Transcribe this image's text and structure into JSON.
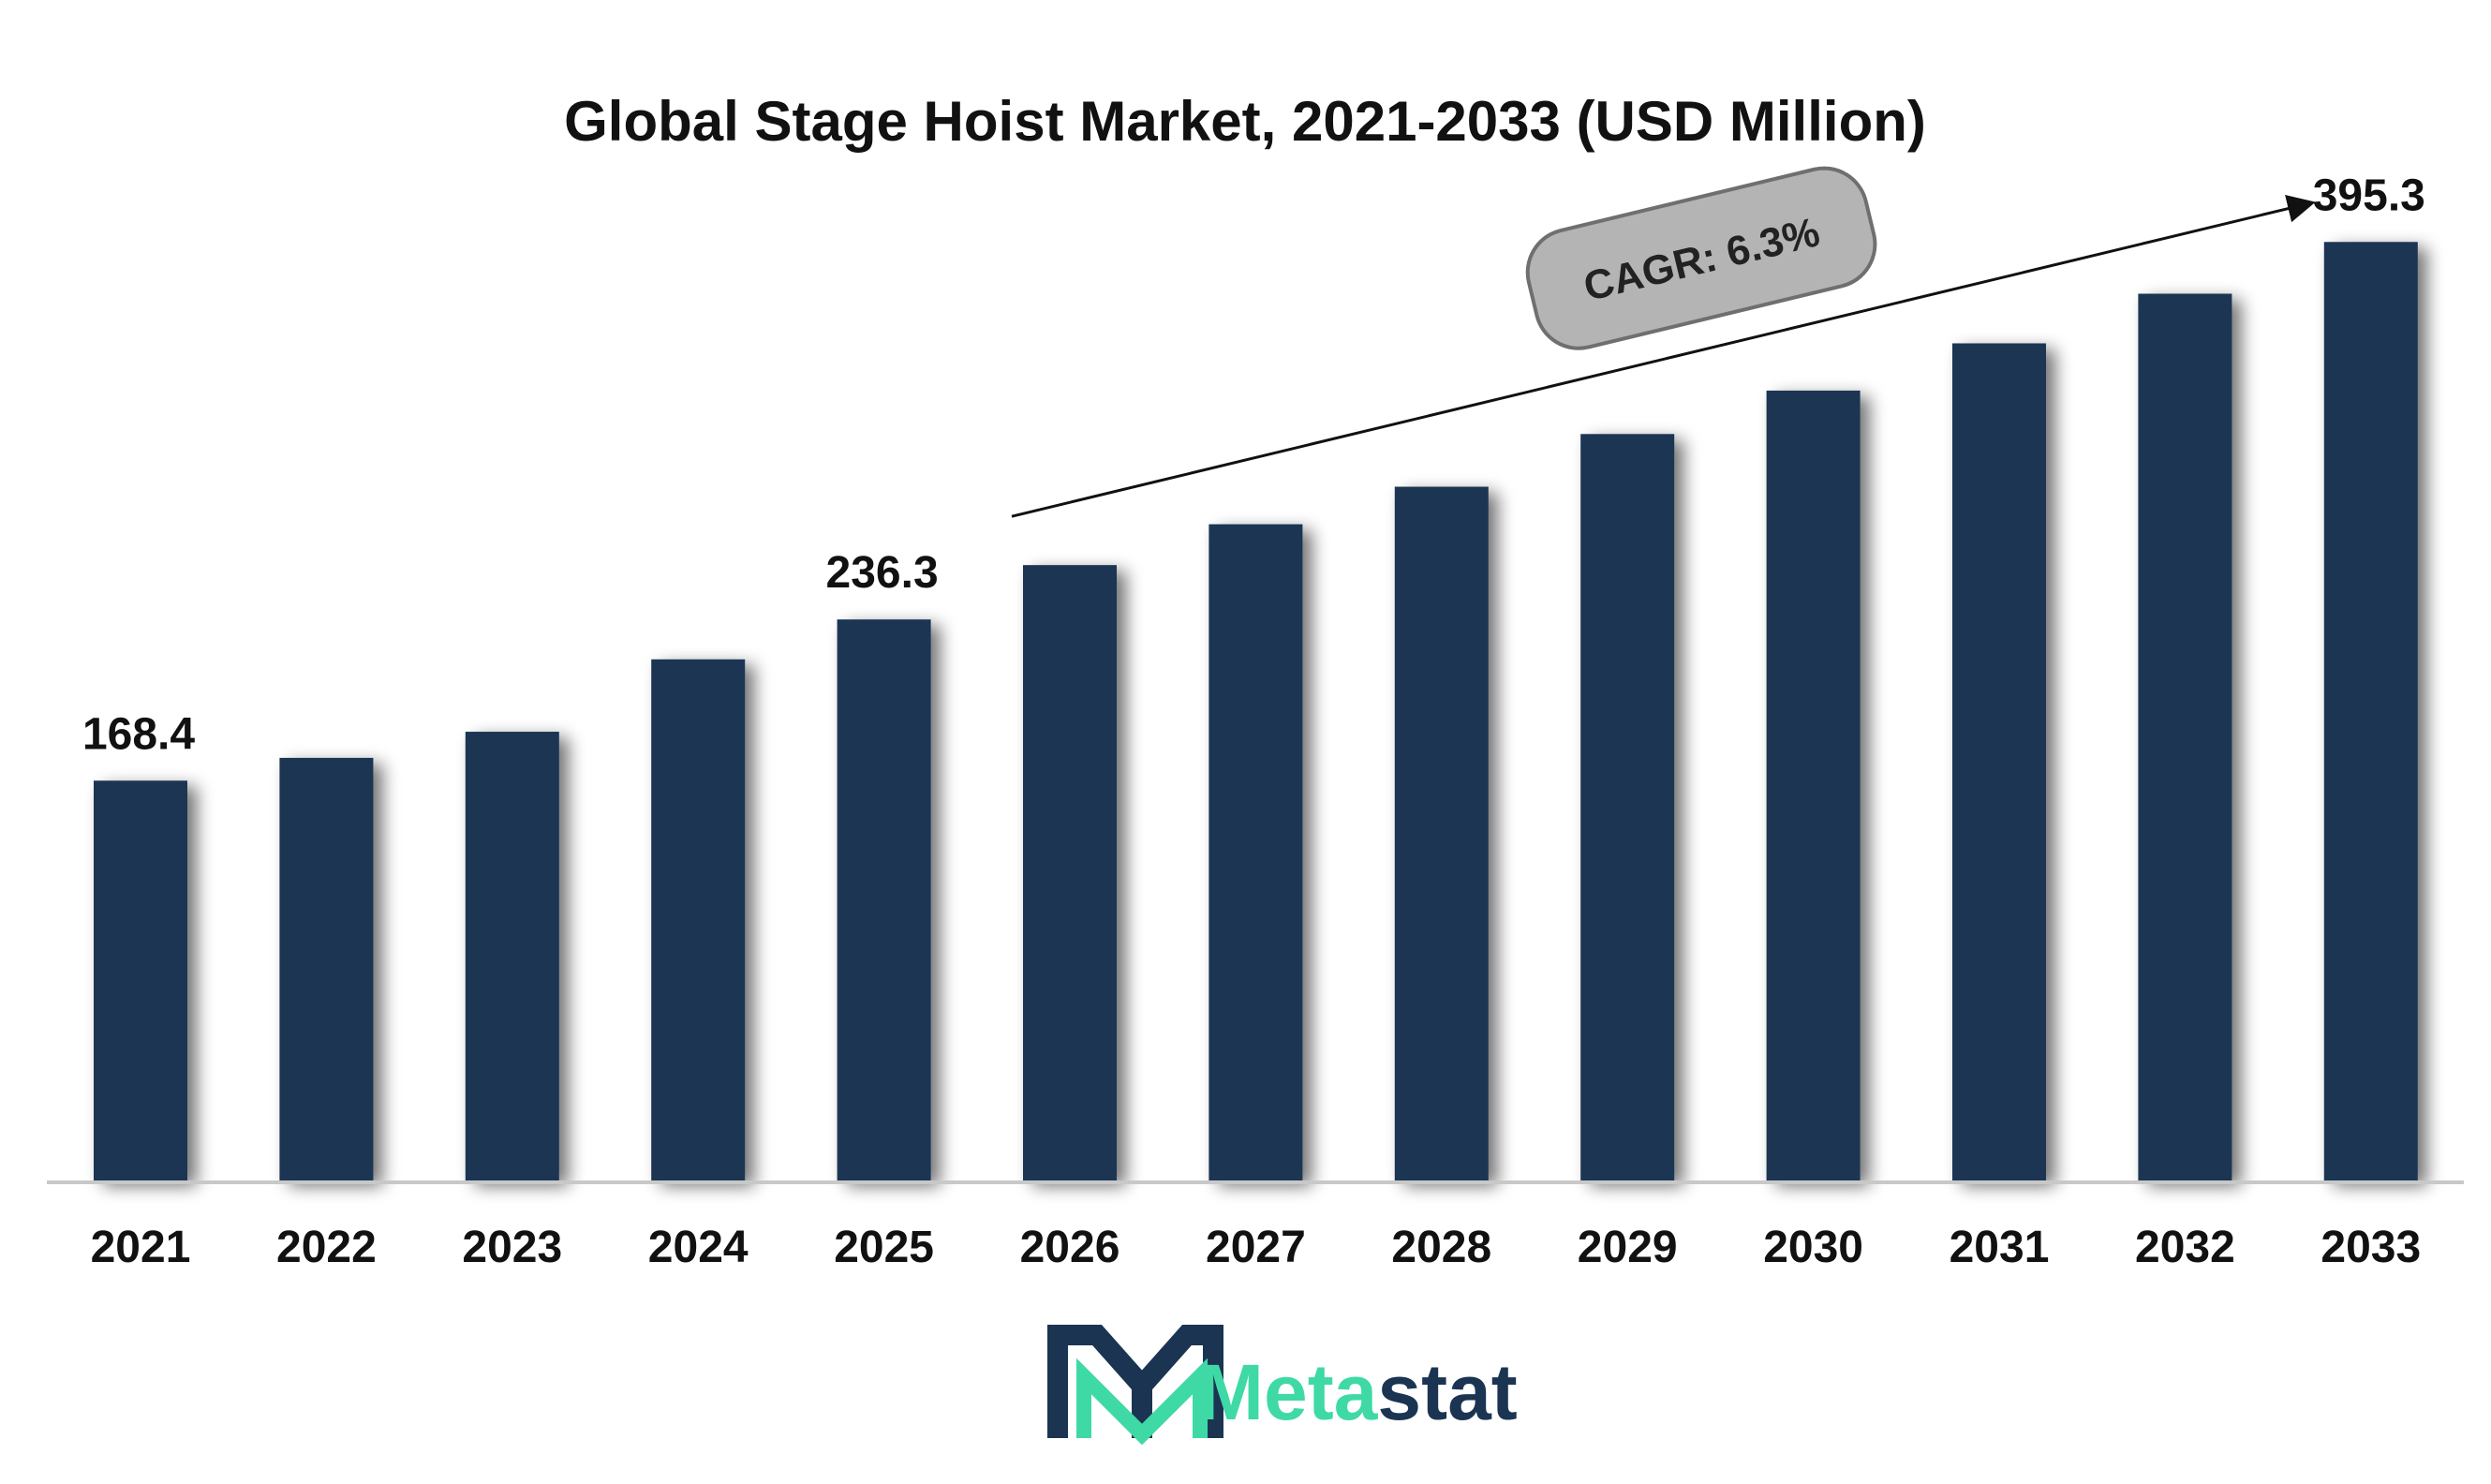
{
  "chart_data": {
    "type": "bar",
    "title": "Global Stage Hoist Market, 2021-2033 (USD Million)",
    "xlabel": "",
    "ylabel": "",
    "categories": [
      "2021",
      "2022",
      "2023",
      "2024",
      "2025",
      "2026",
      "2027",
      "2028",
      "2029",
      "2030",
      "2031",
      "2032",
      "2033"
    ],
    "values": [
      168.4,
      178.0,
      189.0,
      219.5,
      236.3,
      259.2,
      276.4,
      292.2,
      314.4,
      332.7,
      352.6,
      373.5,
      395.3
    ],
    "data_labels": [
      {
        "index": 0,
        "text": "168.4"
      },
      {
        "index": 4,
        "text": "236.3"
      },
      {
        "index": 12,
        "text": "395.3"
      }
    ],
    "ylim": [
      0,
      440
    ],
    "grid": false,
    "legend": "none",
    "bar_color": "#1b3452",
    "annotation": {
      "text": "CAGR: 6.3%",
      "arrow_from_index": 5,
      "arrow_to_index": 12
    }
  },
  "logo": {
    "text_part1": "Meta",
    "text_part2": "stat",
    "color_part1": "#3fd9a6",
    "color_part2": "#1b3452"
  }
}
